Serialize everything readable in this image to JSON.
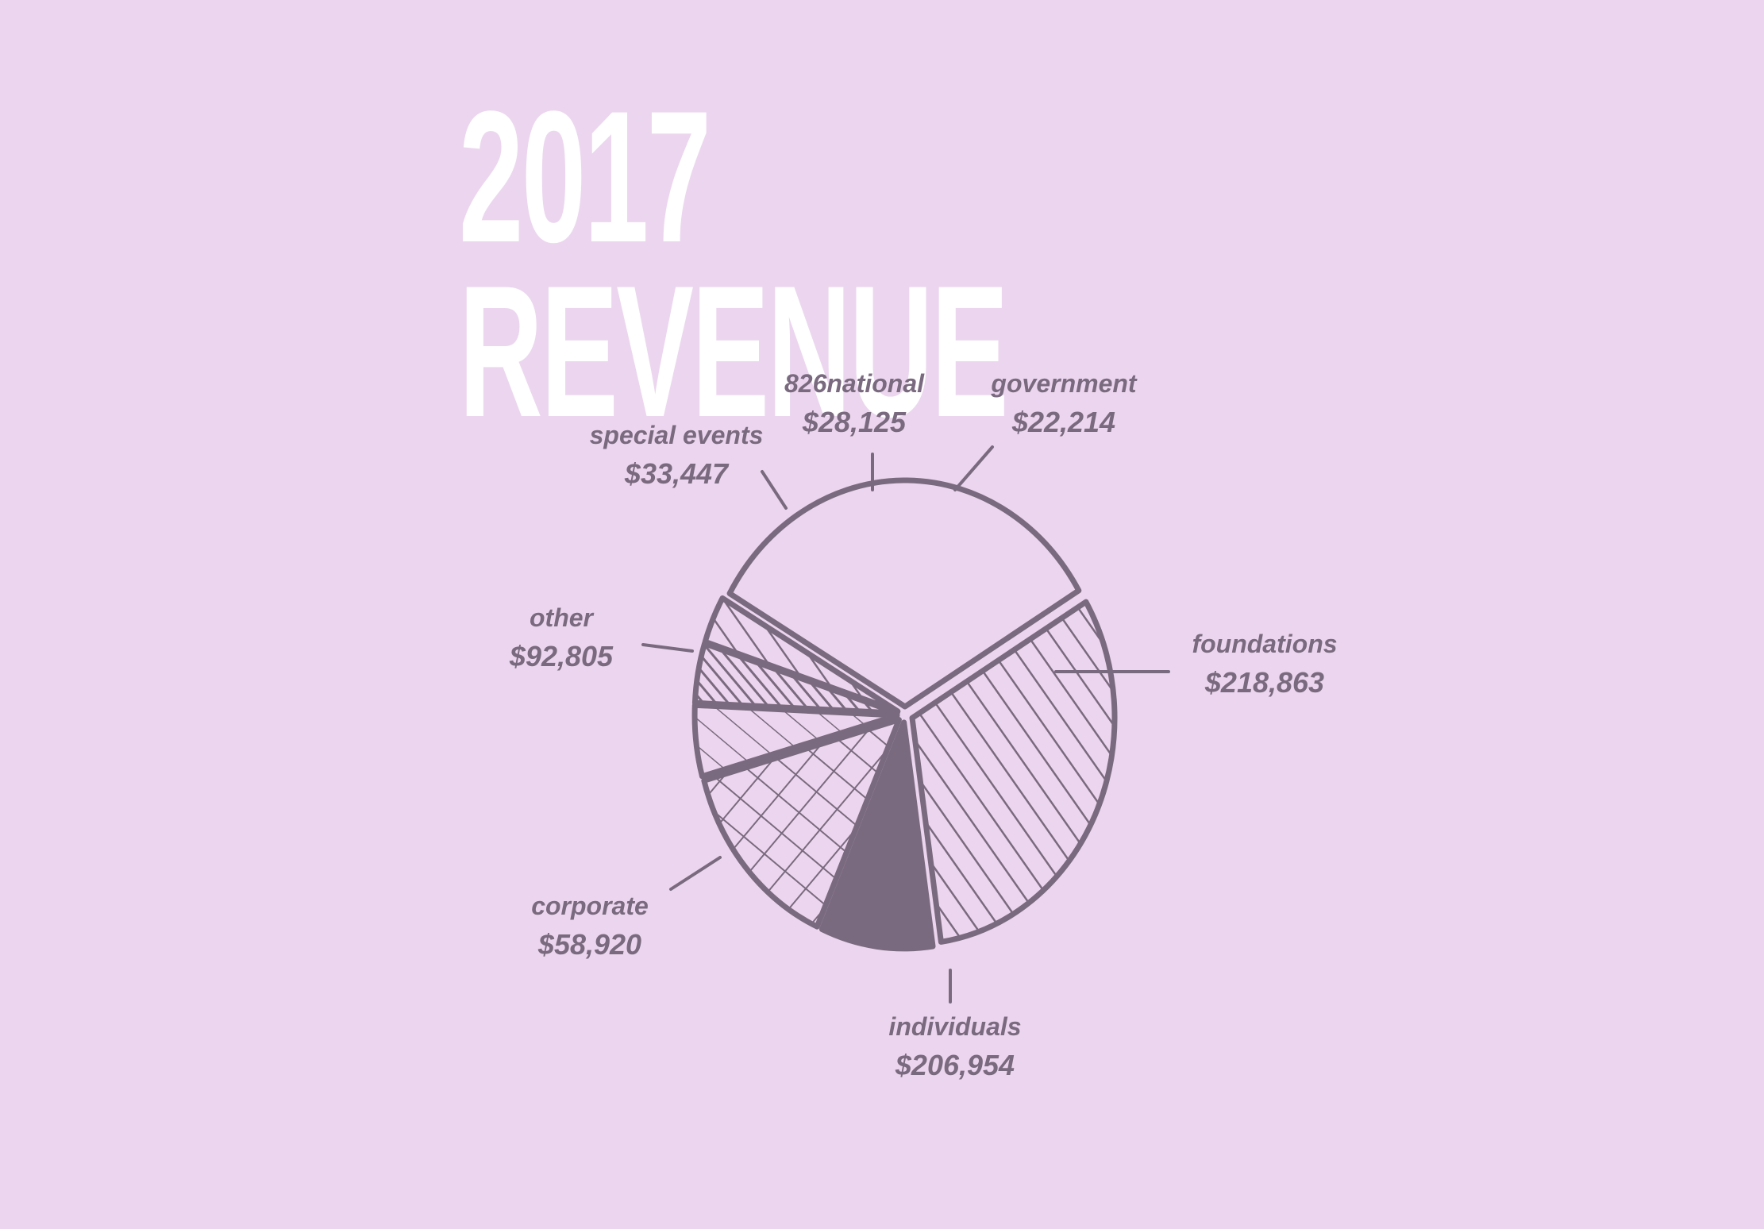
{
  "title": {
    "year": "2017",
    "word": "REVENUE"
  },
  "colors": {
    "background": "#ecd6ef",
    "title": "#ffffff",
    "ink": "#7a6a7f"
  },
  "chart_data": {
    "type": "pie",
    "title": "2017 REVENUE",
    "categories": [
      "foundations",
      "individuals",
      "corporate",
      "other",
      "special events",
      "826national",
      "government"
    ],
    "values": [
      218863,
      206954,
      58920,
      92805,
      33447,
      28125,
      22214
    ],
    "value_labels": [
      "$218,863",
      "$206,954",
      "$58,920",
      "$92,805",
      "$33,447",
      "$28,125",
      "$22,214"
    ],
    "fills": [
      "plain",
      "diagonal-hatch",
      "solid",
      "cross-hatch",
      "diagonal-hatch-light",
      "diagonal-hatch-dense",
      "diagonal-hatch"
    ],
    "legend": "none",
    "style": "hand-drawn sketch"
  }
}
